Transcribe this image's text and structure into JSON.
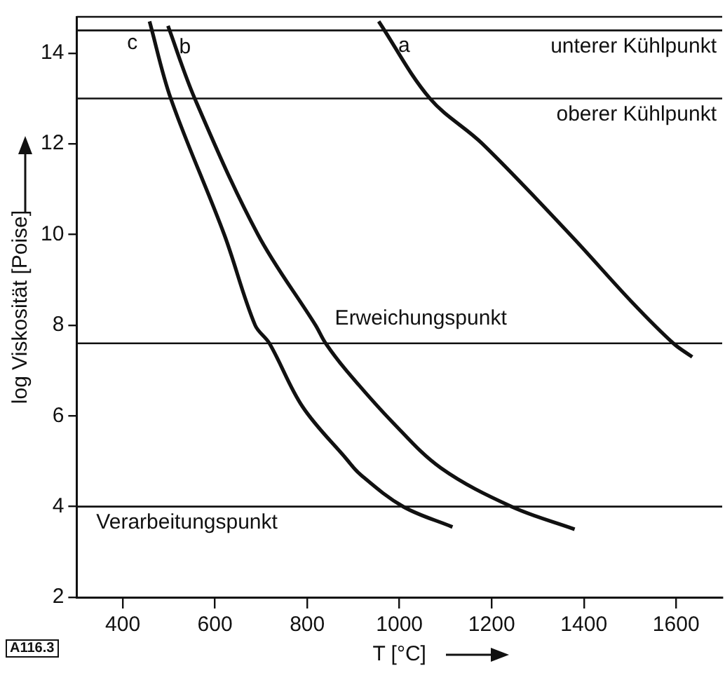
{
  "chart_data": {
    "type": "line",
    "xlabel": "T [°C]",
    "ylabel": "log Viskosität [Poise]",
    "xlim": [
      300,
      1700
    ],
    "ylim": [
      2,
      14.8
    ],
    "xticks": [
      400,
      600,
      800,
      1000,
      1200,
      1400,
      1600
    ],
    "yticks": [
      2,
      4,
      6,
      8,
      10,
      12,
      14
    ],
    "grid": false,
    "legend": false,
    "marker": "none",
    "line_style": "solid",
    "series": [
      {
        "name": "a",
        "color": "#111111",
        "x": [
          955,
          1066,
          1180,
          1370,
          1505,
          1594,
          1635
        ],
        "values": [
          14.7,
          13,
          12,
          10,
          8.5,
          7.6,
          7.3
        ]
      },
      {
        "name": "b",
        "color": "#111111",
        "x": [
          498,
          556,
          693,
          818,
          840,
          885,
          986,
          1090,
          1243,
          1380
        ],
        "values": [
          14.6,
          13,
          10,
          8,
          7.6,
          7,
          5.85,
          4.85,
          4,
          3.5
        ]
      },
      {
        "name": "c",
        "color": "#111111",
        "x": [
          458,
          504,
          620,
          687,
          718,
          790,
          885,
          916,
          1008,
          1115
        ],
        "values": [
          14.7,
          13,
          10,
          8,
          7.6,
          6.2,
          5.05,
          4.7,
          4,
          3.55
        ]
      }
    ],
    "ref_lines": [
      {
        "axis": "y",
        "value": 14.5,
        "label": "unterer Kühlpunkt",
        "color": "#111111"
      },
      {
        "axis": "y",
        "value": 13,
        "label": "oberer Kühlpunkt",
        "color": "#111111"
      },
      {
        "axis": "y",
        "value": 7.6,
        "label": "Erweichungspunkt",
        "color": "#111111"
      },
      {
        "axis": "y",
        "value": 4,
        "label": "Verarbeitungspunkt",
        "color": "#111111"
      }
    ],
    "annotations": [
      "A116.3"
    ]
  }
}
